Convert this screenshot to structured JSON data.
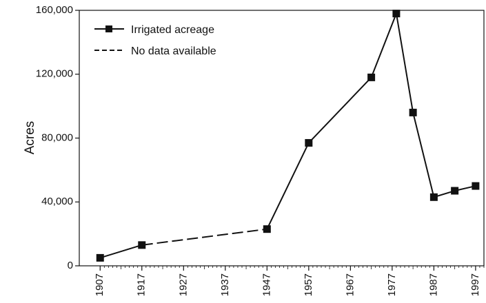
{
  "chart_data": {
    "type": "line",
    "ylabel": "Acres",
    "xlabel": "",
    "xlim": [
      1902,
      1999
    ],
    "ylim": [
      0,
      160000
    ],
    "x_ticks": [
      "1907",
      "1917",
      "1927",
      "1937",
      "1947",
      "1957",
      "1967",
      "1977",
      "1987",
      "1997"
    ],
    "y_ticks": [
      "0",
      "40,000",
      "80,000",
      "120,000",
      "160,000"
    ],
    "series": [
      {
        "name": "Irrigated acreage",
        "x": [
          1907,
          1917,
          1947,
          1957,
          1972,
          1978,
          1982,
          1987,
          1992,
          1997
        ],
        "y": [
          5000,
          13000,
          23000,
          77000,
          118000,
          158000,
          96000,
          43000,
          47000,
          50000
        ],
        "no_data_segments": [
          [
            1917,
            1947
          ]
        ]
      }
    ],
    "legend": {
      "position": "top-left",
      "entries": [
        {
          "label": "Irrigated acreage",
          "style": "solid-with-square-marker"
        },
        {
          "label": "No data available",
          "style": "dashed"
        }
      ]
    },
    "grid": false,
    "colors": {
      "line": "#111111",
      "marker": "#111111",
      "axis": "#111111"
    }
  }
}
